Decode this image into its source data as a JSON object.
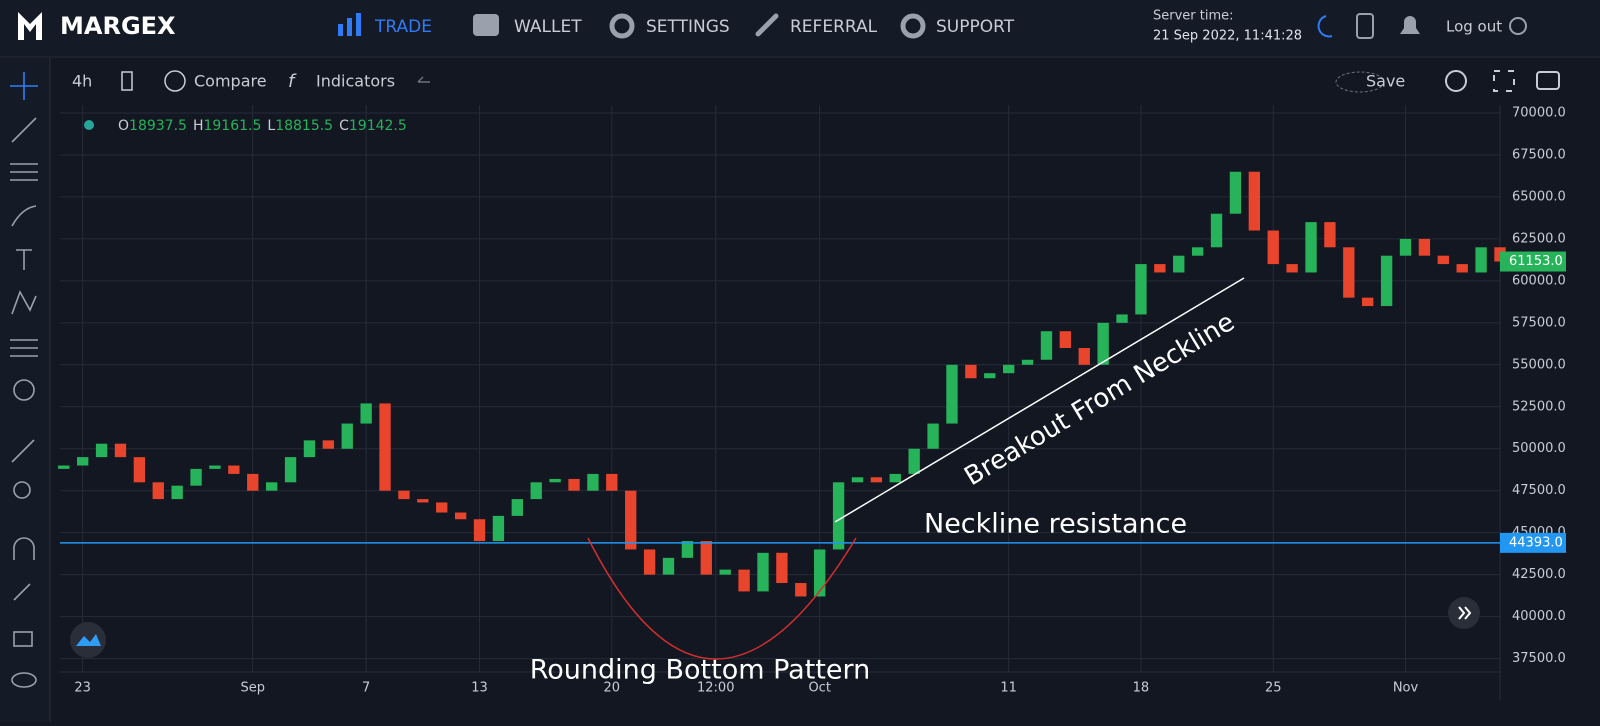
{
  "header": {
    "logo": "MARGEX",
    "nav": [
      "TRADE",
      "WALLET",
      "SETTINGS",
      "REFERRAL",
      "SUPPORT"
    ],
    "server_time_label": "Server time:",
    "server_time": "21 Sep 2022, 11:41:28",
    "logout": "Log out"
  },
  "toolbar": {
    "interval": "4h",
    "compare": "Compare",
    "indicators": "Indicators",
    "save": "Save"
  },
  "chart_data": {
    "type": "candlestick",
    "legend": [
      {
        "key": "O",
        "value": 18937.5
      },
      {
        "key": "H",
        "value": 19161.5
      },
      {
        "key": "L",
        "value": 18815.5
      },
      {
        "key": "C",
        "value": 19142.5
      }
    ],
    "first_open": 48800,
    "closes": [
      49000,
      49500,
      50300,
      49500,
      48000,
      47000,
      47800,
      48800,
      49000,
      48500,
      47500,
      48000,
      49500,
      50500,
      50000,
      51500,
      52700,
      47500,
      47000,
      46800,
      46200,
      45800,
      44500,
      46000,
      47000,
      48000,
      48200,
      47500,
      48500,
      47500,
      44000,
      42500,
      43500,
      44500,
      42500,
      42800,
      41500,
      43800,
      42000,
      41200,
      44000,
      48000,
      48300,
      48000,
      48500,
      50000,
      51500,
      55000,
      54200,
      54500,
      55000,
      55300,
      57000,
      56000,
      55000,
      57500,
      58000,
      61000,
      60500,
      61500,
      62000,
      64000,
      66500,
      63000,
      61000,
      60500,
      63500,
      62000,
      59000,
      58500,
      61500,
      62500,
      61500,
      61000,
      60500,
      62000,
      61153
    ],
    "up_color": "#26b35a",
    "down_color": "#e8452c",
    "xlim": [
      -0.2,
      76
    ],
    "xticks": [
      {
        "value": 1,
        "label": "23"
      },
      {
        "value": 10,
        "label": "Sep"
      },
      {
        "value": 16,
        "label": "7"
      },
      {
        "value": 22,
        "label": "13"
      },
      {
        "value": 29,
        "label": "20"
      },
      {
        "value": 34.5,
        "label": "12:00"
      },
      {
        "value": 40,
        "label": "Oct"
      },
      {
        "value": 50,
        "label": "11"
      },
      {
        "value": 57,
        "label": "18"
      },
      {
        "value": 64,
        "label": "25"
      },
      {
        "value": 71,
        "label": "Nov"
      }
    ],
    "ylim": [
      36700,
      70000
    ],
    "yticks": [
      {
        "value": 37500,
        "label": "37500.0"
      },
      {
        "value": 40000,
        "label": "40000.0"
      },
      {
        "value": 42500,
        "label": "42500.0"
      },
      {
        "value": 45000,
        "label": "45000.0"
      },
      {
        "value": 47500,
        "label": "47500.0"
      },
      {
        "value": 50000,
        "label": "50000.0"
      },
      {
        "value": 52500,
        "label": "52500.0"
      },
      {
        "value": 55000,
        "label": "55000.0"
      },
      {
        "value": 57500,
        "label": "57500.0"
      },
      {
        "value": 60000,
        "label": "60000.0"
      },
      {
        "value": 62500,
        "label": "62500.0"
      },
      {
        "value": 65000,
        "label": "65000.0"
      },
      {
        "value": 67500,
        "label": "67500.0"
      },
      {
        "value": 70000,
        "label": "70000.0"
      }
    ],
    "grid": true,
    "neckline": {
      "value": 44393,
      "label": "44393.0",
      "color": "#2196f3"
    },
    "last_price": {
      "value": 61153,
      "label": "61153.0",
      "color": "#26b35a"
    },
    "annotations": {
      "neckline": "Neckline resistance",
      "breakout": "Breakout From  Neckline",
      "pattern": "Rounding Bottom Pattern"
    }
  }
}
